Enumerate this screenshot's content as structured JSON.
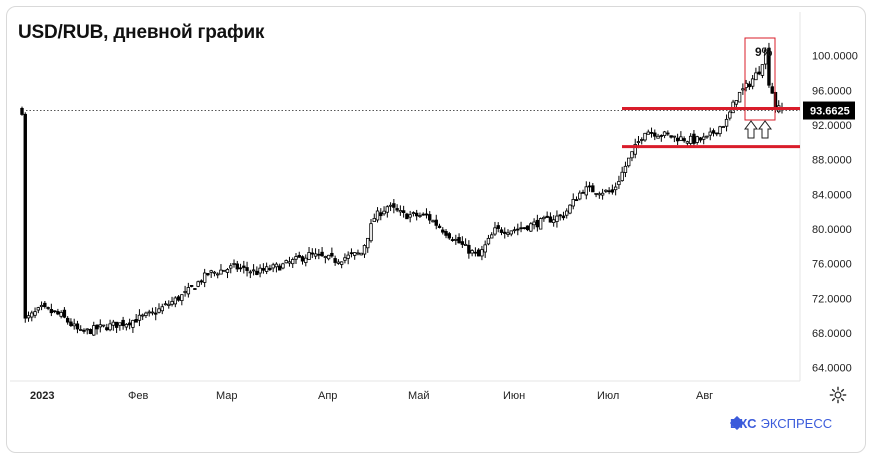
{
  "title": "USD/RUB, дневной график",
  "logo": {
    "brand": "БКС",
    "name": "ЭКСПРЕСС"
  },
  "colors": {
    "candle": "#000000",
    "level": "#d91c2a",
    "box": "#d91c2a",
    "price_tag": "#000000"
  },
  "icons": {
    "settings": "gear-icon",
    "arrows": "arrow-up-outline-icon"
  },
  "chart_data": {
    "type": "candlestick",
    "title": "USD/RUB, дневной график",
    "x_ticks": [
      "2023",
      "Фев",
      "Мар",
      "Апр",
      "Май",
      "Июн",
      "Июл",
      "Авг"
    ],
    "y_ticks": [
      "100.0000",
      "96.0000",
      "92.0000",
      "88.0000",
      "84.0000",
      "80.0000",
      "76.0000",
      "72.0000",
      "68.0000",
      "64.0000"
    ],
    "ylim": [
      62.8,
      101.8
    ],
    "current_price": "93.6625",
    "support_levels": [
      93.9,
      89.5
    ],
    "annotation": "9%",
    "close_path": [
      [
        1,
        69.5
      ],
      [
        6,
        70.8
      ],
      [
        12,
        70.0
      ],
      [
        18,
        68.0
      ],
      [
        24,
        68.6
      ],
      [
        32,
        69.2
      ],
      [
        40,
        70.2
      ],
      [
        50,
        72.5
      ],
      [
        57,
        74.8
      ],
      [
        65,
        75.6
      ],
      [
        72,
        75.0
      ],
      [
        80,
        75.8
      ],
      [
        88,
        77.0
      ],
      [
        96,
        76.4
      ],
      [
        104,
        77.2
      ],
      [
        108,
        81.3
      ],
      [
        112,
        82.6
      ],
      [
        117,
        81.6
      ],
      [
        124,
        81.5
      ],
      [
        132,
        79.0
      ],
      [
        136,
        77.8
      ],
      [
        140,
        76.8
      ],
      [
        145,
        79.8
      ],
      [
        152,
        80.0
      ],
      [
        160,
        80.9
      ],
      [
        166,
        81.6
      ],
      [
        172,
        84.6
      ],
      [
        177,
        84.4
      ],
      [
        181,
        84.2
      ],
      [
        186,
        88.0
      ],
      [
        191,
        91.4
      ],
      [
        194,
        91.1
      ],
      [
        200,
        90.6
      ],
      [
        206,
        90.2
      ],
      [
        210,
        90.4
      ],
      [
        213,
        91.5
      ],
      [
        216,
        92.4
      ],
      [
        219,
        95.2
      ],
      [
        223,
        96.8
      ],
      [
        226,
        98.3
      ],
      [
        228,
        100.5
      ],
      [
        229,
        97.0
      ],
      [
        230,
        95.8
      ],
      [
        231,
        94.0
      ],
      [
        233,
        93.66
      ]
    ],
    "n_candles": 234
  }
}
